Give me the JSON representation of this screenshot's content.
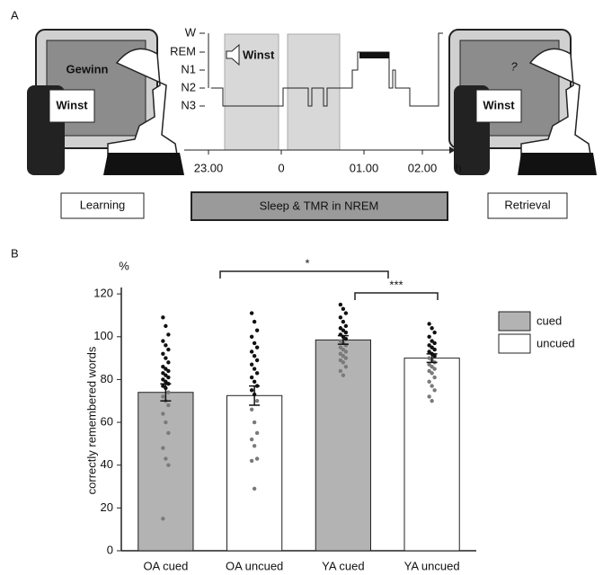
{
  "panel_a": {
    "label": "A",
    "screen_word": "Gewinn",
    "cue_word": "Winst",
    "retrieval_prompt": "?",
    "stages": [
      "W",
      "REM",
      "N1",
      "N2",
      "N3"
    ],
    "time_ticks": [
      "23.00",
      "0",
      "01.00",
      "02.00"
    ],
    "time_unit": "h",
    "phases": [
      "Learning",
      "Sleep & TMR in NREM",
      "Retrieval"
    ]
  },
  "chart_data": {
    "type": "bar",
    "panel_label": "B",
    "y_label": "correctly remembered words",
    "y_unit": "%",
    "categories": [
      "OA cued",
      "OA uncued",
      "YA cued",
      "YA uncued"
    ],
    "ylim": [
      0,
      123
    ],
    "yticks": [
      0,
      20,
      40,
      60,
      80,
      100,
      120
    ],
    "legend": "right",
    "annotations": [
      "*",
      "***"
    ],
    "series": [
      {
        "name": "cued",
        "color": "#b3b3b3",
        "values": [
          74,
          null,
          98.5,
          null
        ],
        "errors": [
          4,
          null,
          2,
          null
        ],
        "points": [
          [
            109,
            105,
            101,
            98,
            96,
            94,
            92,
            90,
            88,
            86,
            85,
            84,
            83,
            82,
            81,
            80,
            79,
            78,
            77,
            76,
            74,
            72,
            70,
            68,
            64,
            60,
            55,
            48,
            43,
            40,
            15
          ],
          null,
          [
            115,
            113,
            111,
            109,
            107,
            105,
            104,
            103,
            102,
            101,
            100,
            99,
            98,
            97,
            96,
            95,
            94,
            93,
            92,
            91,
            90,
            89,
            88,
            86,
            84,
            82
          ],
          null
        ]
      },
      {
        "name": "uncued",
        "color": "#ffffff",
        "values": [
          null,
          72.5,
          null,
          90
        ],
        "errors": [
          null,
          4.5,
          null,
          2
        ],
        "points": [
          null,
          [
            111,
            107,
            103,
            100,
            97,
            95,
            93,
            91,
            89,
            87,
            85,
            83,
            81,
            79,
            77,
            75,
            73,
            70,
            66,
            60,
            55,
            52,
            49,
            43,
            42,
            29
          ],
          null,
          [
            106,
            104,
            102,
            100,
            98,
            97,
            96,
            95,
            94,
            93,
            92,
            91,
            90,
            89,
            88,
            87,
            86,
            85,
            84,
            83,
            81,
            79,
            77,
            75,
            72,
            70
          ]
        ]
      }
    ]
  }
}
